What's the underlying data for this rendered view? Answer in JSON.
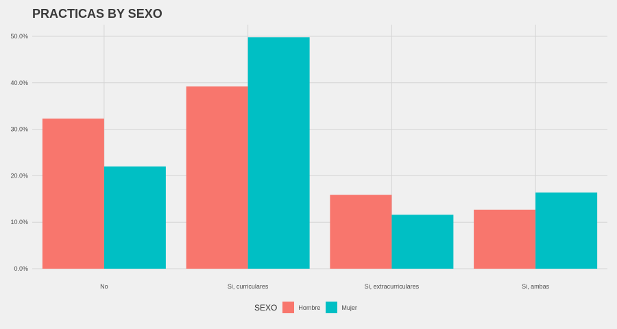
{
  "chart_data": {
    "type": "bar",
    "title": "PRACTICAS BY SEXO",
    "xlabel": "",
    "ylabel": "",
    "categories": [
      "No",
      "Si, curriculares",
      "Si, extracurriculares",
      "Si, ambas"
    ],
    "series": [
      {
        "name": "Hombre",
        "color": "#F8766D",
        "values": [
          32.3,
          39.2,
          15.9,
          12.7
        ]
      },
      {
        "name": "Mujer",
        "color": "#00BFC4",
        "values": [
          22.0,
          49.8,
          11.6,
          16.4
        ]
      }
    ],
    "ylim": [
      0,
      50
    ],
    "yticks": [
      "0.0%",
      "10.0%",
      "20.0%",
      "30.0%",
      "40.0%",
      "50.0%"
    ],
    "grid": true,
    "legend": {
      "title": "SEXO",
      "placement": "bottom"
    }
  }
}
